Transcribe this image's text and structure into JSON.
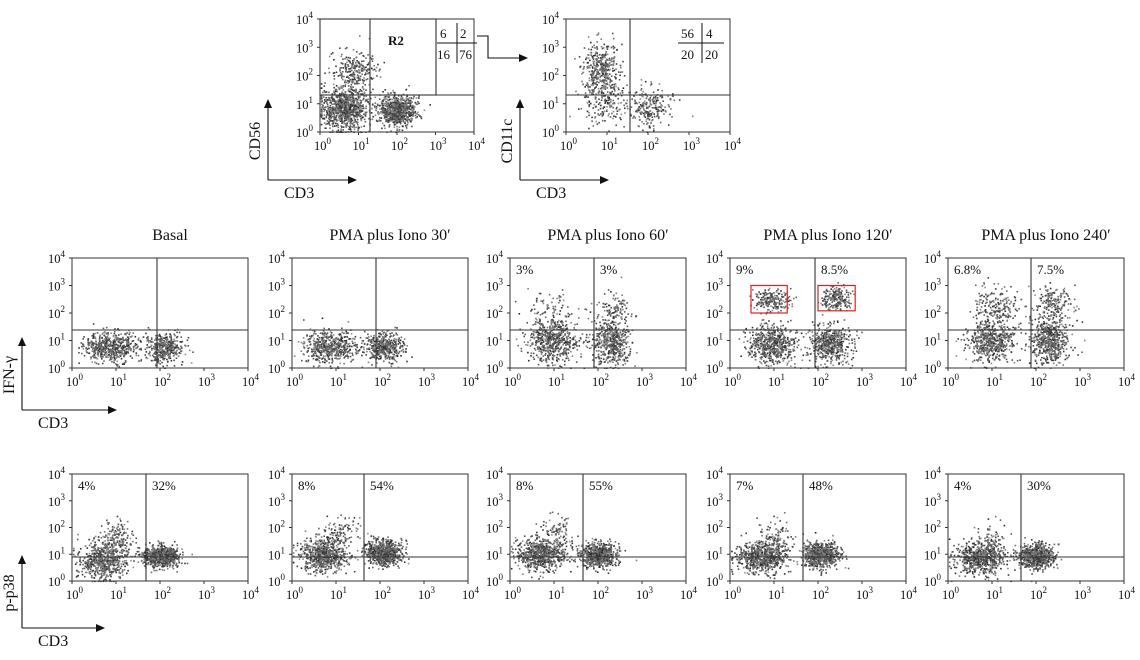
{
  "chart_data": [
    {
      "type": "scatter",
      "id": "gating-cd56",
      "xlabel": "CD3",
      "ylabel": "CD56",
      "xlim": [
        1,
        10000
      ],
      "ylim": [
        1,
        10000
      ],
      "log_scale": true,
      "tick_exponents": [
        "0",
        "1",
        "2",
        "3",
        "4"
      ],
      "gate_region_label": "R2",
      "quadrant_values": {
        "upper_left": "6",
        "upper_right": "2",
        "lower_left": "16",
        "lower_right": "76"
      },
      "clusters": [
        {
          "x": 4,
          "y": 7,
          "spread": [
            0.32,
            0.36
          ],
          "n": 900
        },
        {
          "x": 100,
          "y": 6,
          "spread": [
            0.22,
            0.26
          ],
          "n": 850
        },
        {
          "x": 8,
          "y": 150,
          "spread": [
            0.3,
            0.35
          ],
          "n": 260
        }
      ]
    },
    {
      "type": "scatter",
      "id": "gating-cd11c",
      "xlabel": "CD3",
      "ylabel": "CD11c",
      "xlim": [
        1,
        10000
      ],
      "ylim": [
        1,
        10000
      ],
      "log_scale": true,
      "tick_exponents": [
        "0",
        "1",
        "2",
        "3",
        "4"
      ],
      "quadrant_values": {
        "upper_left": "56",
        "upper_right": "4",
        "lower_left": "20",
        "lower_right": "20"
      },
      "clusters": [
        {
          "x": 7,
          "y": 150,
          "spread": [
            0.22,
            0.5
          ],
          "n": 420
        },
        {
          "x": 100,
          "y": 8,
          "spread": [
            0.25,
            0.35
          ],
          "n": 230
        },
        {
          "x": 8,
          "y": 8,
          "spread": [
            0.3,
            0.35
          ],
          "n": 120
        }
      ]
    },
    {
      "type": "scatter",
      "id": "ifn-basal",
      "title": "Basal",
      "xlim": [
        1,
        10000
      ],
      "ylim": [
        1,
        10000
      ],
      "log_scale": true,
      "tick_exponents": [
        "0",
        "1",
        "2",
        "3",
        "4"
      ],
      "labels": {
        "left": "",
        "right": ""
      },
      "clusters": [
        {
          "x": 7,
          "y": 6,
          "spread": [
            0.3,
            0.28
          ],
          "n": 520
        },
        {
          "x": 120,
          "y": 6,
          "spread": [
            0.22,
            0.26
          ],
          "n": 420
        }
      ]
    },
    {
      "type": "scatter",
      "id": "ifn-30",
      "title": "PMA plus Iono 30′",
      "xlim": [
        1,
        10000
      ],
      "ylim": [
        1,
        10000
      ],
      "log_scale": true,
      "tick_exponents": [
        "0",
        "1",
        "2",
        "3",
        "4"
      ],
      "labels": {
        "left": "",
        "right": ""
      },
      "clusters": [
        {
          "x": 7,
          "y": 6,
          "spread": [
            0.3,
            0.28
          ],
          "n": 520
        },
        {
          "x": 120,
          "y": 6,
          "spread": [
            0.22,
            0.26
          ],
          "n": 420
        }
      ]
    },
    {
      "type": "scatter",
      "id": "ifn-60",
      "title": "PMA plus Iono 60′",
      "xlim": [
        1,
        10000
      ],
      "ylim": [
        1,
        10000
      ],
      "log_scale": true,
      "tick_exponents": [
        "0",
        "1",
        "2",
        "3",
        "4"
      ],
      "labels": {
        "left": "3%",
        "right": "3%"
      },
      "clusters": [
        {
          "x": 9,
          "y": 10,
          "spread": [
            0.28,
            0.4
          ],
          "n": 560
        },
        {
          "x": 200,
          "y": 10,
          "spread": [
            0.22,
            0.45
          ],
          "n": 520
        },
        {
          "x": 9,
          "y": 150,
          "spread": [
            0.28,
            0.3
          ],
          "n": 80
        },
        {
          "x": 220,
          "y": 150,
          "spread": [
            0.2,
            0.3
          ],
          "n": 80
        }
      ]
    },
    {
      "type": "scatter",
      "id": "ifn-120",
      "title": "PMA plus Iono 120′",
      "xlim": [
        1,
        10000
      ],
      "ylim": [
        1,
        10000
      ],
      "log_scale": true,
      "tick_exponents": [
        "0",
        "1",
        "2",
        "3",
        "4"
      ],
      "labels": {
        "left": "9%",
        "right": "8.5%"
      },
      "highlight_boxes": [
        {
          "x": [
            3,
            20
          ],
          "y": [
            100,
            1000
          ]
        },
        {
          "x": [
            100,
            700
          ],
          "y": [
            120,
            1000
          ]
        }
      ],
      "clusters": [
        {
          "x": 9,
          "y": 8,
          "spread": [
            0.28,
            0.35
          ],
          "n": 560
        },
        {
          "x": 180,
          "y": 8,
          "spread": [
            0.22,
            0.35
          ],
          "n": 520
        },
        {
          "x": 9,
          "y": 300,
          "spread": [
            0.2,
            0.2
          ],
          "n": 200
        },
        {
          "x": 250,
          "y": 350,
          "spread": [
            0.15,
            0.2
          ],
          "n": 210
        }
      ]
    },
    {
      "type": "scatter",
      "id": "ifn-240",
      "title": "PMA plus Iono 240′",
      "xlim": [
        1,
        10000
      ],
      "ylim": [
        1,
        10000
      ],
      "log_scale": true,
      "tick_exponents": [
        "0",
        "1",
        "2",
        "3",
        "4"
      ],
      "labels": {
        "left": "6.8%",
        "right": "7.5%"
      },
      "clusters": [
        {
          "x": 9,
          "y": 10,
          "spread": [
            0.28,
            0.4
          ],
          "n": 560
        },
        {
          "x": 200,
          "y": 10,
          "spread": [
            0.22,
            0.4
          ],
          "n": 520
        },
        {
          "x": 12,
          "y": 200,
          "spread": [
            0.25,
            0.35
          ],
          "n": 180
        },
        {
          "x": 250,
          "y": 200,
          "spread": [
            0.2,
            0.35
          ],
          "n": 190
        }
      ]
    },
    {
      "type": "scatter",
      "id": "pp38-basal",
      "xlim": [
        1,
        10000
      ],
      "ylim": [
        1,
        10000
      ],
      "log_scale": true,
      "tick_exponents": [
        "0",
        "1",
        "2",
        "3",
        "4"
      ],
      "labels": {
        "left": "4%",
        "right": "32%"
      },
      "clusters": [
        {
          "x": 5,
          "y": 6,
          "spread": [
            0.28,
            0.35
          ],
          "n": 600
        },
        {
          "x": 100,
          "y": 9,
          "spread": [
            0.2,
            0.2
          ],
          "n": 700
        },
        {
          "x": 10,
          "y": 40,
          "spread": [
            0.2,
            0.35
          ],
          "n": 150
        }
      ]
    },
    {
      "type": "scatter",
      "id": "pp38-30",
      "xlim": [
        1,
        10000
      ],
      "ylim": [
        1,
        10000
      ],
      "log_scale": true,
      "tick_exponents": [
        "0",
        "1",
        "2",
        "3",
        "4"
      ],
      "labels": {
        "left": "8%",
        "right": "54%"
      },
      "clusters": [
        {
          "x": 5,
          "y": 10,
          "spread": [
            0.26,
            0.3
          ],
          "n": 650
        },
        {
          "x": 120,
          "y": 12,
          "spread": [
            0.2,
            0.22
          ],
          "n": 750
        },
        {
          "x": 12,
          "y": 60,
          "spread": [
            0.2,
            0.35
          ],
          "n": 120
        }
      ]
    },
    {
      "type": "scatter",
      "id": "pp38-60",
      "xlim": [
        1,
        10000
      ],
      "ylim": [
        1,
        10000
      ],
      "log_scale": true,
      "tick_exponents": [
        "0",
        "1",
        "2",
        "3",
        "4"
      ],
      "labels": {
        "left": "8%",
        "right": "55%"
      },
      "clusters": [
        {
          "x": 5,
          "y": 10,
          "spread": [
            0.28,
            0.3
          ],
          "n": 650
        },
        {
          "x": 100,
          "y": 10,
          "spread": [
            0.2,
            0.22
          ],
          "n": 750
        },
        {
          "x": 10,
          "y": 50,
          "spread": [
            0.2,
            0.35
          ],
          "n": 110
        }
      ]
    },
    {
      "type": "scatter",
      "id": "pp38-120",
      "xlim": [
        1,
        10000
      ],
      "ylim": [
        1,
        10000
      ],
      "log_scale": true,
      "tick_exponents": [
        "0",
        "1",
        "2",
        "3",
        "4"
      ],
      "labels": {
        "left": "7%",
        "right": "48%"
      },
      "clusters": [
        {
          "x": 5,
          "y": 8,
          "spread": [
            0.28,
            0.3
          ],
          "n": 620
        },
        {
          "x": 110,
          "y": 10,
          "spread": [
            0.2,
            0.22
          ],
          "n": 720
        },
        {
          "x": 10,
          "y": 40,
          "spread": [
            0.2,
            0.35
          ],
          "n": 110
        }
      ]
    },
    {
      "type": "scatter",
      "id": "pp38-240",
      "xlim": [
        1,
        10000
      ],
      "ylim": [
        1,
        10000
      ],
      "log_scale": true,
      "tick_exponents": [
        "0",
        "1",
        "2",
        "3",
        "4"
      ],
      "labels": {
        "left": "4%",
        "right": "30%"
      },
      "clusters": [
        {
          "x": 5,
          "y": 7,
          "spread": [
            0.28,
            0.3
          ],
          "n": 600
        },
        {
          "x": 100,
          "y": 9,
          "spread": [
            0.2,
            0.22
          ],
          "n": 700
        },
        {
          "x": 10,
          "y": 30,
          "spread": [
            0.2,
            0.35
          ],
          "n": 100
        }
      ]
    }
  ],
  "axis_labels": {
    "row_ifn_y": "IFN-γ",
    "row_ifn_x": "CD3",
    "row_pp38_y": "p-p38",
    "row_pp38_x": "CD3"
  },
  "colors": {
    "dot": "#555555",
    "axis": "#333333",
    "highlight": "#e02020"
  }
}
